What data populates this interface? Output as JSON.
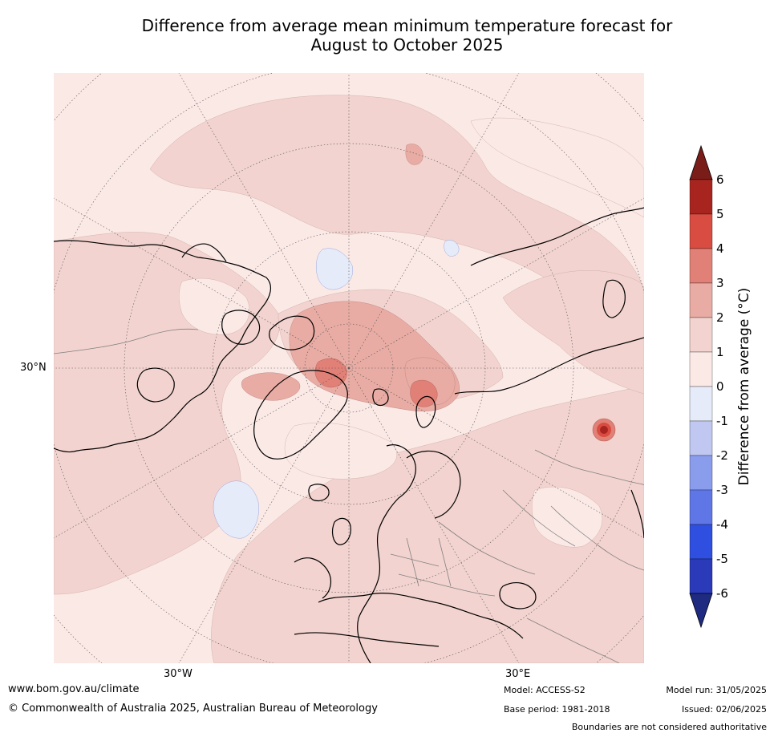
{
  "title": {
    "line1": "Difference from average mean minimum temperature forecast for",
    "line2": "August to October 2025"
  },
  "map": {
    "projection": "north-polar-stereographic",
    "lat_label": "30°N",
    "lon_labels": [
      "30°W",
      "30°E"
    ],
    "colors": {
      "anom_0_1": "#fbe9e6",
      "anom_1_2": "#f2d3cf",
      "anom_2_3": "#e8aca4",
      "anom_3_4": "#e18076",
      "anom_4_5": "#d94c41",
      "anom_5_6": "#a8251f",
      "anom_neg_0_1": "#e6ebfa",
      "coastline": "#000000",
      "borders": "#808080",
      "gridlines": "#555555"
    }
  },
  "colorbar": {
    "label": "Difference from average (°C)",
    "ticks": [
      "6",
      "5",
      "4",
      "3",
      "2",
      "1",
      "0",
      "-1",
      "-2",
      "-3",
      "-4",
      "-5",
      "-6"
    ],
    "bands": [
      {
        "range": "5 to 6",
        "color": "#a8251f"
      },
      {
        "range": "4 to 5",
        "color": "#d94c41"
      },
      {
        "range": "3 to 4",
        "color": "#e18076"
      },
      {
        "range": "2 to 3",
        "color": "#e8aca4"
      },
      {
        "range": "1 to 2",
        "color": "#f2d3cf"
      },
      {
        "range": "0 to 1",
        "color": "#fbe9e6"
      },
      {
        "range": "-1 to 0",
        "color": "#e6ebfa"
      },
      {
        "range": "-2 to -1",
        "color": "#c0c8f2"
      },
      {
        "range": "-3 to -2",
        "color": "#8a9cec"
      },
      {
        "range": "-4 to -3",
        "color": "#5f77e6"
      },
      {
        "range": "-5 to -4",
        "color": "#2f4fe0"
      },
      {
        "range": "-6 to -5",
        "color": "#2a3ab8"
      }
    ],
    "over_color": "#7a1c18",
    "under_color": "#1e2b80"
  },
  "footer": {
    "website": "www.bom.gov.au/climate",
    "copyright": "© Commonwealth of Australia 2025, Australian Bureau of Meteorology",
    "model": "Model: ACCESS-S2",
    "base_period": "Base period: 1981-2018",
    "model_run": "Model run: 31/05/2025",
    "issued": "Issued: 02/06/2025",
    "disclaimer": "Boundaries are not considered authoritative"
  }
}
